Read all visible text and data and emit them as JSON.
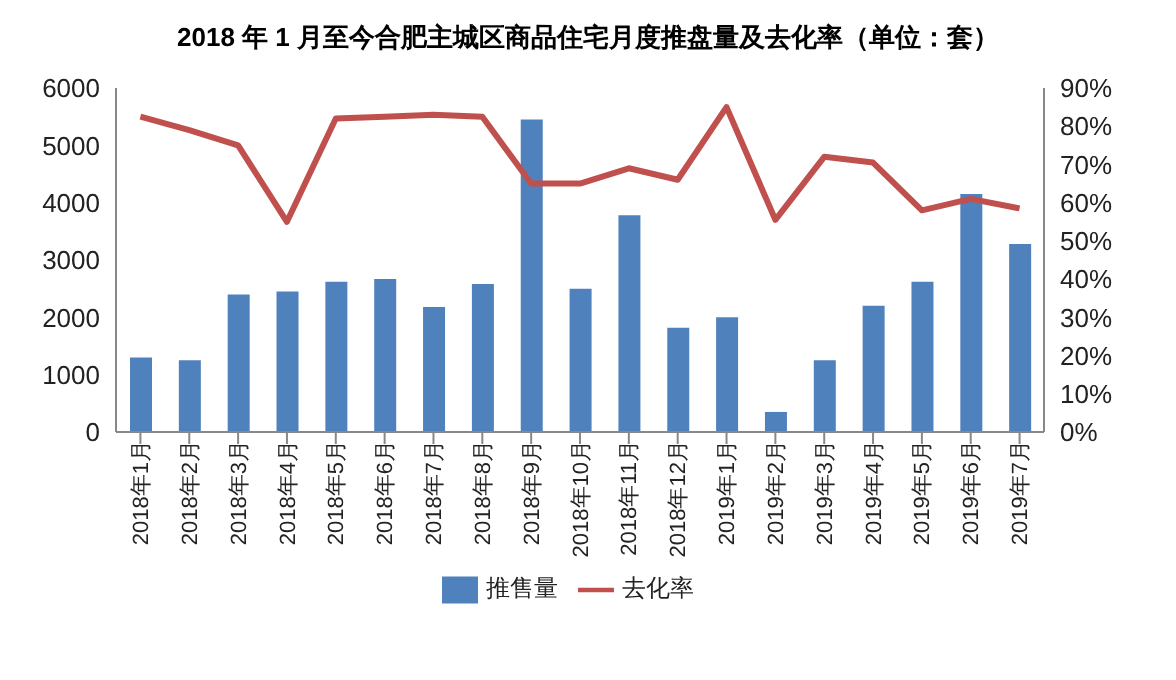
{
  "chart_data": {
    "type": "bar",
    "title": "2018 年 1 月至今合肥主城区商品住宅月度推盘量及去化率（单位：套）",
    "categories": [
      "2018年1月",
      "2018年2月",
      "2018年3月",
      "2018年4月",
      "2018年5月",
      "2018年6月",
      "2018年7月",
      "2018年8月",
      "2018年9月",
      "2018年10月",
      "2018年11月",
      "2018年12月",
      "2019年1月",
      "2019年2月",
      "2019年3月",
      "2019年4月",
      "2019年5月",
      "2019年6月",
      "2019年7月"
    ],
    "series": [
      {
        "name": "推售量",
        "color": "#4f81bd",
        "values": [
          1300,
          1250,
          2400,
          2450,
          2620,
          2670,
          2180,
          2580,
          5450,
          2500,
          3780,
          1820,
          2000,
          350,
          1250,
          2200,
          2620,
          4150,
          3280
        ]
      },
      {
        "name": "去化率",
        "type": "line",
        "axis": "y2",
        "color": "#c0504d",
        "values": [
          82.5,
          79,
          75,
          55,
          82,
          82.5,
          83,
          82.5,
          65,
          65,
          69,
          66,
          85,
          55.5,
          72,
          70.5,
          58,
          61,
          58.5
        ]
      }
    ],
    "ylim": [
      0,
      6000
    ],
    "yticks": [
      0,
      1000,
      2000,
      3000,
      4000,
      5000,
      6000
    ],
    "y2lim": [
      0,
      90
    ],
    "y2ticks": [
      {
        "value": 0,
        "label": "0%"
      },
      {
        "value": 10,
        "label": "10%"
      },
      {
        "value": 20,
        "label": "20%"
      },
      {
        "value": 30,
        "label": "30%"
      },
      {
        "value": 40,
        "label": "40%"
      },
      {
        "value": 50,
        "label": "50%"
      },
      {
        "value": 60,
        "label": "60%"
      },
      {
        "value": 70,
        "label": "70%"
      },
      {
        "value": 80,
        "label": "80%"
      },
      {
        "value": 90,
        "label": "90%"
      }
    ],
    "grid": false,
    "legend": "bottom",
    "marker": "none",
    "line_style": "solid"
  }
}
